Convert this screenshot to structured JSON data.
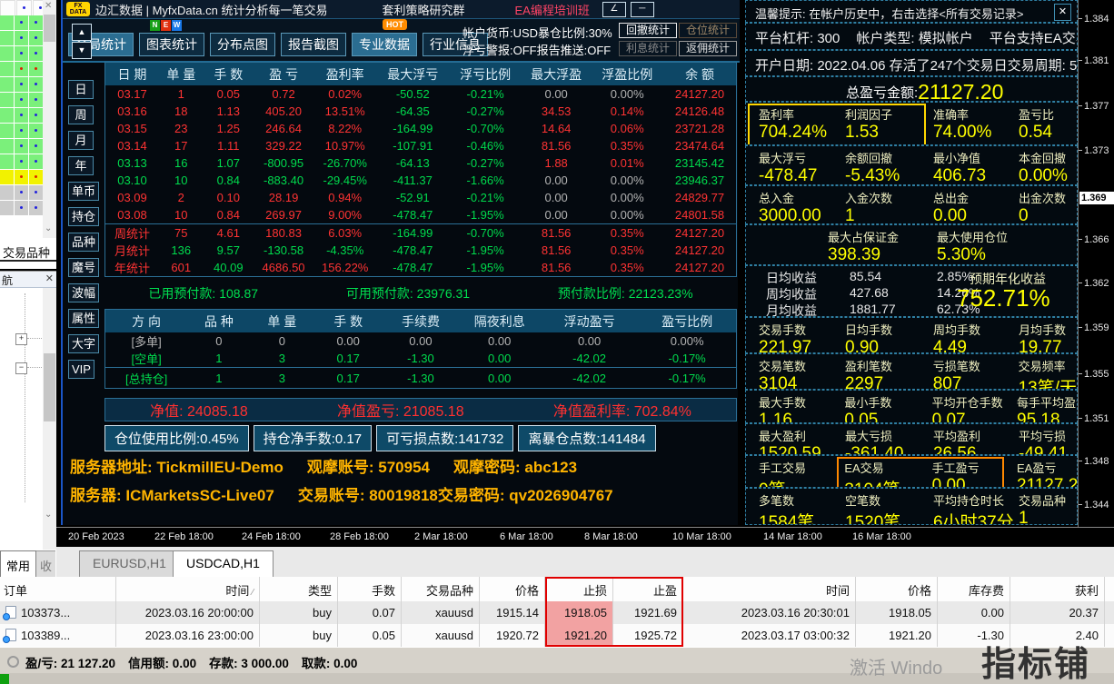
{
  "stats_panel": {
    "header": {
      "logo_top": "FX",
      "logo_bottom": "DATA",
      "title": "边汇数据 | MyfxData.cn 统计分析每一笔交易",
      "community": "套利策略研究群",
      "training": "EA编程培训班",
      "edit_icon": "∠",
      "minimize_icon": "─"
    },
    "toolbar": {
      "tabs": [
        {
          "label": "全局统计",
          "active": true,
          "badge": null
        },
        {
          "label": "图表统计",
          "active": false,
          "badge": "NEW"
        },
        {
          "label": "分布点图",
          "active": false,
          "badge": null
        },
        {
          "label": "报告截图",
          "active": false,
          "badge": null
        },
        {
          "label": "专业数据",
          "active": true,
          "badge": "HOT"
        },
        {
          "label": "行业信息",
          "active": false,
          "badge": null
        }
      ],
      "account_line1": "帐户货币:USD暴仓比例:30%",
      "account_line2": "浮亏警报:OFF报告推送:OFF",
      "right_buttons": [
        {
          "label": "回撤统计",
          "style": "bright"
        },
        {
          "label": "仓位统计",
          "style": "dimorange"
        },
        {
          "label": "利息统计",
          "style": "dim"
        },
        {
          "label": "返佣统计",
          "style": "light"
        }
      ]
    },
    "side_tabs": [
      "日",
      "周",
      "月",
      "年",
      "单币",
      "持仓",
      "品种",
      "魔号",
      "波幅",
      "属性",
      "大字",
      "VIP"
    ],
    "daily_table": {
      "headers": [
        "日 期",
        "单 量",
        "手 数",
        "盈 亏",
        "盈利率",
        "最大浮亏",
        "浮亏比例",
        "最大浮盈",
        "浮盈比例",
        "余 额"
      ],
      "rows": [
        {
          "cells": [
            "03.17",
            "1",
            "0.05",
            "0.72",
            "0.02%",
            "-50.52",
            "-0.21%",
            "0.00",
            "0.00%",
            "24127.20"
          ],
          "colors": [
            "r",
            "r",
            "r",
            "r",
            "r",
            "g",
            "g",
            "w",
            "w",
            "r"
          ]
        },
        {
          "cells": [
            "03.16",
            "18",
            "1.13",
            "405.20",
            "13.51%",
            "-64.35",
            "-0.27%",
            "34.53",
            "0.14%",
            "24126.48"
          ],
          "colors": [
            "r",
            "r",
            "r",
            "r",
            "r",
            "g",
            "g",
            "r",
            "r",
            "r"
          ]
        },
        {
          "cells": [
            "03.15",
            "23",
            "1.25",
            "246.64",
            "8.22%",
            "-164.99",
            "-0.70%",
            "14.64",
            "0.06%",
            "23721.28"
          ],
          "colors": [
            "r",
            "r",
            "r",
            "r",
            "r",
            "g",
            "g",
            "r",
            "r",
            "r"
          ]
        },
        {
          "cells": [
            "03.14",
            "17",
            "1.11",
            "329.22",
            "10.97%",
            "-107.91",
            "-0.46%",
            "81.56",
            "0.35%",
            "23474.64"
          ],
          "colors": [
            "r",
            "r",
            "r",
            "r",
            "r",
            "g",
            "g",
            "r",
            "r",
            "r"
          ]
        },
        {
          "cells": [
            "03.13",
            "16",
            "1.07",
            "-800.95",
            "-26.70%",
            "-64.13",
            "-0.27%",
            "1.88",
            "0.01%",
            "23145.42"
          ],
          "colors": [
            "g",
            "g",
            "g",
            "g",
            "g",
            "g",
            "g",
            "r",
            "r",
            "g"
          ]
        },
        {
          "cells": [
            "03.10",
            "10",
            "0.84",
            "-883.40",
            "-29.45%",
            "-411.37",
            "-1.66%",
            "0.00",
            "0.00%",
            "23946.37"
          ],
          "colors": [
            "g",
            "g",
            "g",
            "g",
            "g",
            "g",
            "g",
            "w",
            "w",
            "g"
          ]
        },
        {
          "cells": [
            "03.09",
            "2",
            "0.10",
            "28.19",
            "0.94%",
            "-52.91",
            "-0.21%",
            "0.00",
            "0.00%",
            "24829.77"
          ],
          "colors": [
            "r",
            "r",
            "r",
            "r",
            "r",
            "g",
            "g",
            "w",
            "w",
            "r"
          ]
        },
        {
          "cells": [
            "03.08",
            "10",
            "0.84",
            "269.97",
            "9.00%",
            "-478.47",
            "-1.95%",
            "0.00",
            "0.00%",
            "24801.58"
          ],
          "colors": [
            "r",
            "r",
            "r",
            "r",
            "r",
            "g",
            "g",
            "w",
            "w",
            "r"
          ]
        }
      ],
      "summary_rows": [
        {
          "cells": [
            "周统计",
            "75",
            "4.61",
            "180.83",
            "6.03%",
            "-164.99",
            "-0.70%",
            "81.56",
            "0.35%",
            "24127.20"
          ],
          "colors": [
            "r",
            "r",
            "r",
            "r",
            "r",
            "g",
            "g",
            "r",
            "r",
            "r"
          ]
        },
        {
          "cells": [
            "月统计",
            "136",
            "9.57",
            "-130.58",
            "-4.35%",
            "-478.47",
            "-1.95%",
            "81.56",
            "0.35%",
            "24127.20"
          ],
          "colors": [
            "r",
            "g",
            "g",
            "g",
            "g",
            "g",
            "g",
            "r",
            "r",
            "r"
          ]
        },
        {
          "cells": [
            "年统计",
            "601",
            "40.09",
            "4686.50",
            "156.22%",
            "-478.47",
            "-1.95%",
            "81.56",
            "0.35%",
            "24127.20"
          ],
          "colors": [
            "r",
            "r",
            "g",
            "r",
            "r",
            "g",
            "g",
            "r",
            "r",
            "r"
          ]
        }
      ]
    },
    "margin_line": [
      "已用预付款: 108.87",
      "可用预付款: 23976.31",
      "预付款比例: 22123.23%"
    ],
    "position_table": {
      "headers": [
        "方 向",
        "品 种",
        "单 量",
        "手 数",
        "手续费",
        "隔夜利息",
        "浮动盈亏",
        "盈亏比例"
      ],
      "rows": [
        {
          "cells": [
            "[多单]",
            "0",
            "0",
            "0.00",
            "0.00",
            "0.00",
            "0.00",
            "0.00%"
          ],
          "colors": [
            "w",
            "w",
            "w",
            "w",
            "w",
            "w",
            "w",
            "w"
          ]
        },
        {
          "cells": [
            "[空单]",
            "1",
            "3",
            "0.17",
            "-1.30",
            "0.00",
            "-42.02",
            "-0.17%"
          ],
          "colors": [
            "g",
            "g",
            "g",
            "g",
            "g",
            "g",
            "g",
            "g"
          ]
        }
      ],
      "total_row": {
        "cells": [
          "[总持仓]",
          "1",
          "3",
          "0.17",
          "-1.30",
          "0.00",
          "-42.02",
          "-0.17%"
        ],
        "colors": [
          "g",
          "g",
          "g",
          "g",
          "g",
          "g",
          "g",
          "g"
        ]
      }
    },
    "equity_line": [
      "净值: 24085.18",
      "净值盈亏: 21085.18",
      "净值盈利率: 702.84%"
    ],
    "risk_boxes": [
      "仓位使用比例:0.45%",
      "持仓净手数:0.17",
      "可亏损点数:141732",
      "离暴仓点数:141484"
    ],
    "server_info": {
      "line1": [
        "服务器地址: TickmillEU-Demo",
        "观摩账号: 570954",
        "观摩密码: abc123"
      ],
      "line2": [
        "服务器: ICMarketsSC-Live07",
        "交易账号: 80019818交易密码: qv2026904767"
      ]
    }
  },
  "right_panel": {
    "tip": "温馨提示: 在帐户历史中，右击选择<所有交易记录>",
    "close_icon": "✕",
    "platform_line": [
      "平台杠杆: 300",
      "帐户类型: 模拟帐户",
      "平台支持EA交易"
    ],
    "open_line": [
      "开户日期: 2022.04.06 存活了247个交易日交易周期: 50周"
    ],
    "total_label": "总盈亏金额:",
    "total_value": "21127.20",
    "grid_top": [
      {
        "cells": [
          {
            "l": "盈利率",
            "v": "704.24%"
          },
          {
            "l": "利润因子",
            "v": "1.53"
          },
          {
            "l": "准确率",
            "v": "74.00%"
          },
          {
            "l": "盈亏比",
            "v": "0.54"
          }
        ],
        "highlight": "yellow"
      },
      {
        "cells": [
          {
            "l": "最大浮亏",
            "v": "-478.47"
          },
          {
            "l": "余额回撤",
            "v": "-5.43%"
          },
          {
            "l": "最小净值",
            "v": "406.73"
          },
          {
            "l": "本金回撤",
            "v": "0.00%"
          }
        ],
        "highlight": null
      },
      {
        "cells": [
          {
            "l": "总入金",
            "v": "3000.00"
          },
          {
            "l": "入金次数",
            "v": "1"
          },
          {
            "l": "总出金",
            "v": "0.00"
          },
          {
            "l": "出金次数",
            "v": "0"
          }
        ],
        "highlight": null
      }
    ],
    "margin_row": [
      {
        "l": "最大占保证金",
        "v": "398.39"
      },
      {
        "l": "最大使用仓位",
        "v": "5.30%"
      }
    ],
    "income_rows": [
      [
        "日均收益",
        "85.54",
        "2.85%"
      ],
      [
        "周均收益",
        "427.68",
        "14.26%"
      ],
      [
        "月均收益",
        "1881.77",
        "62.73%"
      ]
    ],
    "annual": {
      "l": "预期年化收益",
      "v": "752.71%"
    },
    "grid_bottom": [
      {
        "cells": [
          {
            "l": "交易手数",
            "v": "221.97"
          },
          {
            "l": "日均手数",
            "v": "0.90"
          },
          {
            "l": "周均手数",
            "v": "4.49"
          },
          {
            "l": "月均手数",
            "v": "19.77"
          }
        ],
        "highlight": null
      },
      {
        "cells": [
          {
            "l": "交易笔数",
            "v": "3104"
          },
          {
            "l": "盈利笔数",
            "v": "2297"
          },
          {
            "l": "亏损笔数",
            "v": "807"
          },
          {
            "l": "交易频率",
            "v": "13笔/天"
          }
        ],
        "highlight": null
      },
      {
        "cells": [
          {
            "l": "最大手数",
            "v": "1.16"
          },
          {
            "l": "最小手数",
            "v": "0.05"
          },
          {
            "l": "平均开仓手数",
            "v": "0.07"
          },
          {
            "l": "每手平均盈亏",
            "v": "95.18"
          }
        ],
        "highlight": null
      },
      {
        "cells": [
          {
            "l": "最大盈利",
            "v": "1520.59"
          },
          {
            "l": "最大亏损",
            "v": "-361.40"
          },
          {
            "l": "平均盈利",
            "v": "26.56"
          },
          {
            "l": "平均亏损",
            "v": "-49.41"
          }
        ],
        "highlight": null
      },
      {
        "cells": [
          {
            "l": "手工交易",
            "v": "0笔"
          },
          {
            "l": "EA交易",
            "v": "3104笔"
          },
          {
            "l": "手工盈亏",
            "v": "0.00"
          },
          {
            "l": "EA盈亏",
            "v": "21127.2"
          }
        ],
        "highlight": "orange"
      },
      {
        "cells": [
          {
            "l": "多笔数",
            "v": "1584笔"
          },
          {
            "l": "空笔数",
            "v": "1520笔"
          },
          {
            "l": "平均持仓时长",
            "v": "6小时37分"
          },
          {
            "l": "交易品种",
            "v": "1"
          }
        ],
        "highlight": null
      }
    ]
  },
  "chart": {
    "price_ticks": [
      "1.384",
      "1.381",
      "1.377",
      "1.373",
      "1.369",
      "1.366",
      "1.362",
      "1.359",
      "1.355",
      "1.351",
      "1.348",
      "1.344"
    ],
    "current_price": "1.369",
    "time_ticks": [
      "20 Feb 2023",
      "22 Feb 18:00",
      "24 Feb 18:00",
      "28 Feb 18:00",
      "2 Mar 18:00",
      "6 Mar 18:00",
      "8 Mar 18:00",
      "10 Mar 18:00",
      "14 Mar 18:00",
      "16 Mar 18:00"
    ]
  },
  "chart_tabs": [
    {
      "label": "EURUSD,H1",
      "active": false
    },
    {
      "label": "USDCAD,H1",
      "active": true
    }
  ],
  "orders_table": {
    "headers": [
      "订单",
      "时间",
      "类型",
      "手数",
      "交易品种",
      "价格",
      "止损",
      "止盈",
      "时间",
      "价格",
      "库存费",
      "获利"
    ],
    "sort_icon": "∕",
    "rows": [
      [
        "103373...",
        "2023.03.16 20:00:00",
        "buy",
        "0.07",
        "xauusd",
        "1915.14",
        "1918.05",
        "1921.69",
        "2023.03.16 20:30:01",
        "1918.05",
        "0.00",
        "20.37"
      ],
      [
        "103389...",
        "2023.03.16 23:00:00",
        "buy",
        "0.05",
        "xauusd",
        "1920.72",
        "1921.20",
        "1925.72",
        "2023.03.17 03:00:32",
        "1921.20",
        "-1.30",
        "2.40"
      ]
    ]
  },
  "market_watch": {
    "symbol_header": "交易品种",
    "rows": [
      {
        "bg": "white",
        "dot": "blue"
      },
      {
        "bg": "green",
        "dot": "blue"
      },
      {
        "bg": "green",
        "dot": "blue"
      },
      {
        "bg": "green",
        "dot": "blue"
      },
      {
        "bg": "green",
        "dot": "red"
      },
      {
        "bg": "green",
        "dot": "blue"
      },
      {
        "bg": "green",
        "dot": "blue"
      },
      {
        "bg": "green",
        "dot": "blue"
      },
      {
        "bg": "green",
        "dot": "blue"
      },
      {
        "bg": "green",
        "dot": "blue"
      },
      {
        "bg": "green",
        "dot": "blue"
      },
      {
        "bg": "yellow",
        "dot": "red"
      },
      {
        "bg": "gray",
        "dot": "blue"
      },
      {
        "bg": "gray",
        "dot": "blue"
      }
    ]
  },
  "navigator": {
    "title": "航",
    "close_icon": "✕",
    "tabs": [
      "常用",
      "收"
    ]
  },
  "status_bar": {
    "segments": [
      "盈/亏: 21 127.20",
      "信用额: 0.00",
      "存款: 3 000.00",
      "取款: 0.00"
    ]
  },
  "watermark": "激活 Windo",
  "brand_stamp": "指标铺"
}
